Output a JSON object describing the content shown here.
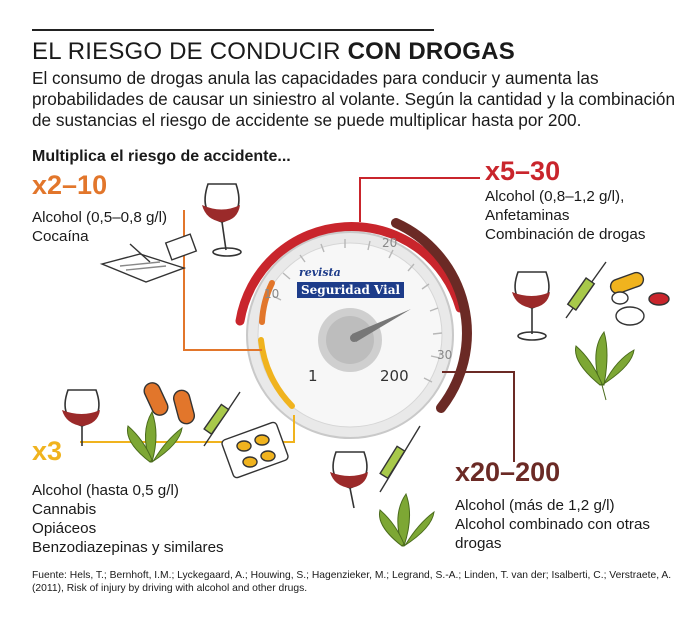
{
  "title": {
    "light": "EL RIESGO DE CONDUCIR ",
    "bold": "CON DROGAS"
  },
  "intro": "El consumo de drogas anula las capacidades para conducir y aumenta las probabilidades de causar un siniestro al volante. Según la cantidad y la combinación de sustancias el riesgo de accidente se puede multiplicar hasta por 200.",
  "subhead": "Multiplica el riesgo de accidente...",
  "groups": [
    {
      "multiplier": "x2–10",
      "color": "#e2762b",
      "items": [
        "Alcohol (0,5–0,8 g/l)",
        "Cocaína"
      ]
    },
    {
      "multiplier": "x5–30",
      "color": "#c9252c",
      "items": [
        "Alcohol (0,8–1,2 g/l),",
        "Anfetaminas",
        "Combinación de drogas"
      ]
    },
    {
      "multiplier": "x3",
      "color": "#f0b31e",
      "items": [
        "Alcohol (hasta 0,5 g/l)",
        "Cannabis",
        "Opiáceos",
        "Benzodiazepinas y similares"
      ]
    },
    {
      "multiplier": "x20–200",
      "color": "#6b2a25",
      "items": [
        "Alcohol (más de 1,2 g/l)",
        "Alcohol combinado con otras",
        "drogas"
      ]
    }
  ],
  "gauge": {
    "brand_top": "revista",
    "brand_main": "Seguridad Vial",
    "ticks": [
      "10",
      "20",
      "30"
    ],
    "min_label": "1",
    "max_label": "200"
  },
  "source": "Fuente: Hels, T.; Bernhoft, I.M.; Lyckegaard, A.; Houwing, S.; Hagenzieker, M.; Legrand, S.-A.; Linden, T. van der; Isalberti, C.; Verstraete, A. (2011), Risk of injury by driving with alcohol and other drugs."
}
